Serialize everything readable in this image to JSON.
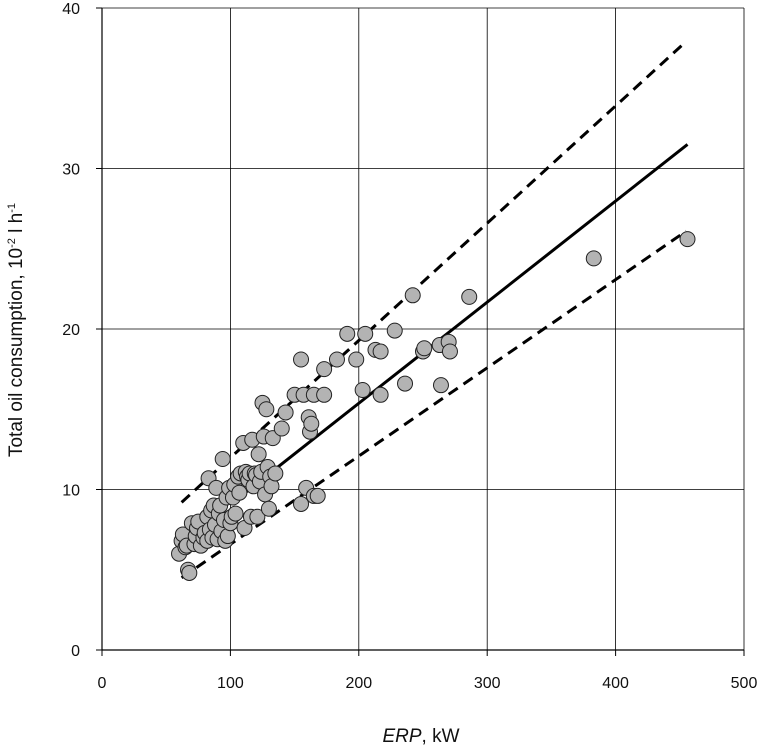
{
  "chart_data": {
    "type": "scatter",
    "title": "",
    "xlabel_italic": "ERP",
    "xlabel_rest": ", kW",
    "ylabel_main": "Total oil consumption, 10",
    "ylabel_exp1": "-2",
    "ylabel_mid": " l h",
    "ylabel_exp2": "-1",
    "xlim": [
      0,
      500
    ],
    "ylim": [
      0,
      40
    ],
    "xticks": [
      0,
      100,
      200,
      300,
      400,
      500
    ],
    "yticks": [
      0,
      10,
      20,
      30,
      40
    ],
    "grid": true,
    "legend": "none",
    "colors": {
      "marker_fill": "#b3b3b3",
      "marker_stroke": "#222222",
      "line": "#000000",
      "grid": "#000000",
      "axis": "#000000"
    },
    "series": [
      {
        "kind": "points",
        "points": [
          [
            60,
            6
          ],
          [
            62,
            6.8
          ],
          [
            63,
            7.2
          ],
          [
            65,
            6.4
          ],
          [
            66,
            6.5
          ],
          [
            67,
            5
          ],
          [
            68,
            4.8
          ],
          [
            70,
            7.9
          ],
          [
            72,
            6.6
          ],
          [
            73,
            7.1
          ],
          [
            74,
            7.6
          ],
          [
            75,
            8
          ],
          [
            77,
            6.5
          ],
          [
            79,
            7
          ],
          [
            80,
            7.3
          ],
          [
            82,
            8.3
          ],
          [
            82,
            6.8
          ],
          [
            83,
            10.7
          ],
          [
            84,
            7.5
          ],
          [
            85,
            8.7
          ],
          [
            86,
            7
          ],
          [
            87,
            9
          ],
          [
            88,
            7.8
          ],
          [
            89,
            10.1
          ],
          [
            90,
            6.9
          ],
          [
            91,
            8.5
          ],
          [
            92,
            9
          ],
          [
            93,
            7.4
          ],
          [
            94,
            11.9
          ],
          [
            95,
            8.1
          ],
          [
            96,
            6.8
          ],
          [
            97,
            9.5
          ],
          [
            98,
            7.1
          ],
          [
            99,
            10.1
          ],
          [
            100,
            7.9
          ],
          [
            101,
            8.3
          ],
          [
            102,
            9.5
          ],
          [
            103,
            10.3
          ],
          [
            104,
            8.5
          ],
          [
            106,
            10.8
          ],
          [
            107,
            9.8
          ],
          [
            108,
            11
          ],
          [
            110,
            12.9
          ],
          [
            111,
            7.6
          ],
          [
            112,
            11.1
          ],
          [
            113,
            10.8
          ],
          [
            114,
            10.6
          ],
          [
            115,
            11
          ],
          [
            116,
            8.3
          ],
          [
            117,
            13.1
          ],
          [
            118,
            10.2
          ],
          [
            119,
            11
          ],
          [
            120,
            10.9
          ],
          [
            121,
            8.3
          ],
          [
            122,
            12.2
          ],
          [
            123,
            10.5
          ],
          [
            124,
            11.1
          ],
          [
            125,
            15.4
          ],
          [
            126,
            13.3
          ],
          [
            127,
            9.7
          ],
          [
            128,
            15
          ],
          [
            129,
            11.4
          ],
          [
            130,
            8.8
          ],
          [
            131,
            10.8
          ],
          [
            132,
            10.2
          ],
          [
            133,
            13.2
          ],
          [
            135,
            11
          ],
          [
            140,
            13.8
          ],
          [
            143,
            14.8
          ],
          [
            150,
            15.9
          ],
          [
            155,
            9.1
          ],
          [
            155,
            18.1
          ],
          [
            157,
            15.9
          ],
          [
            159,
            10.1
          ],
          [
            161,
            14.5
          ],
          [
            162,
            13.6
          ],
          [
            163,
            14.1
          ],
          [
            165,
            9.6
          ],
          [
            165,
            15.9
          ],
          [
            168,
            9.6
          ],
          [
            173,
            17.5
          ],
          [
            173,
            15.9
          ],
          [
            183,
            18.1
          ],
          [
            191,
            19.7
          ],
          [
            198,
            18.1
          ],
          [
            203,
            16.2
          ],
          [
            205,
            19.7
          ],
          [
            213,
            18.7
          ],
          [
            217,
            18.6
          ],
          [
            217,
            15.9
          ],
          [
            228,
            19.9
          ],
          [
            236,
            16.6
          ],
          [
            242,
            22.1
          ],
          [
            250,
            18.6
          ],
          [
            251,
            18.8
          ],
          [
            263,
            19
          ],
          [
            264,
            16.5
          ],
          [
            270,
            19.2
          ],
          [
            271,
            18.6
          ],
          [
            286,
            22
          ],
          [
            383,
            24.4
          ],
          [
            456,
            25.6
          ]
        ]
      },
      {
        "kind": "fit",
        "style": "solid",
        "points": [
          [
            102,
            9.2
          ],
          [
            456,
            31.5
          ]
        ]
      },
      {
        "kind": "upper-bound",
        "style": "dashed",
        "points": [
          [
            62,
            9.2
          ],
          [
            452,
            37.7
          ]
        ]
      },
      {
        "kind": "lower-bound",
        "style": "dashed",
        "points": [
          [
            62,
            4.5
          ],
          [
            455,
            26.1
          ]
        ]
      }
    ]
  }
}
